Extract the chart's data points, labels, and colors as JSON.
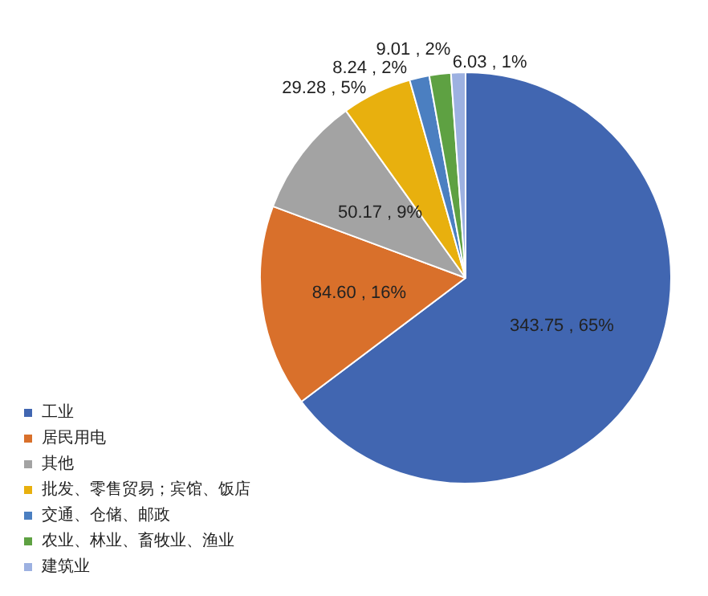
{
  "chart_data": {
    "type": "pie",
    "categories": [
      "工业",
      "居民用电",
      "其他",
      "批发、零售贸易；宾馆、饭店",
      "交通、仓储、邮政",
      "农业、林业、畜牧业、渔业",
      "建筑业"
    ],
    "values": [
      343.75,
      84.6,
      50.17,
      29.28,
      8.24,
      9.01,
      6.03
    ],
    "colors": [
      "#4166b1",
      "#d9702b",
      "#a3a3a3",
      "#e8b00e",
      "#4b7fc1",
      "#5ea142",
      "#9db1e1"
    ],
    "value_labels": [
      "343.75 , 65%",
      "84.60 , 16%",
      "50.17 , 9%",
      "29.28 , 5%",
      "8.24 , 2%",
      "9.01 , 2%",
      "6.03 , 1%"
    ],
    "legend": "bottom left"
  }
}
